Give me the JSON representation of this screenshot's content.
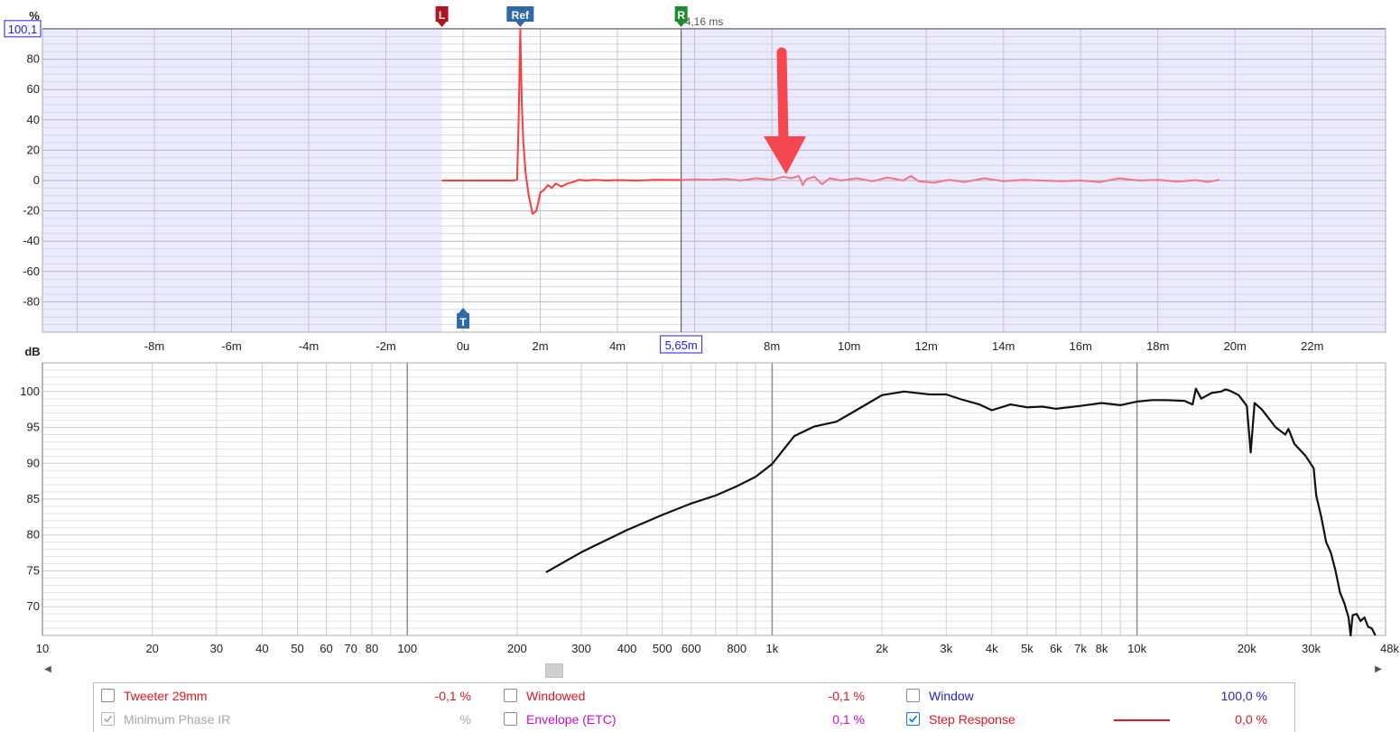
{
  "chart_data": [
    {
      "type": "line",
      "title": "",
      "ylabel": "%",
      "xlabel": "",
      "x_unit": "ms",
      "xlim": [
        -10.9,
        23.9
      ],
      "ylim": [
        -100,
        100
      ],
      "yticks": [
        80,
        60,
        40,
        20,
        0,
        -20,
        -40,
        -60,
        -80
      ],
      "xtick_labels": [
        {
          "x": -8,
          "label": "-8m"
        },
        {
          "x": -6,
          "label": "-6m"
        },
        {
          "x": -4,
          "label": "-4m"
        },
        {
          "x": -2,
          "label": "-2m"
        },
        {
          "x": 0,
          "label": "0u"
        },
        {
          "x": 2,
          "label": "2m"
        },
        {
          "x": 4,
          "label": "4m"
        },
        {
          "x": 8,
          "label": "8m"
        },
        {
          "x": 10,
          "label": "10m"
        },
        {
          "x": 12,
          "label": "12m"
        },
        {
          "x": 14,
          "label": "14m"
        },
        {
          "x": 16,
          "label": "16m"
        },
        {
          "x": 18,
          "label": "18m"
        },
        {
          "x": 20,
          "label": "20m"
        },
        {
          "x": 22,
          "label": "22m"
        }
      ],
      "window": {
        "left_ms": -0.55,
        "right_ms": 5.65
      },
      "markers": [
        {
          "label": "L",
          "x": -0.55,
          "color": "#b3121f",
          "position": "top"
        },
        {
          "label": "Ref",
          "x": 1.48,
          "color": "#2e6aa8",
          "position": "top"
        },
        {
          "label": "R",
          "x": 5.65,
          "color": "#1e8a2c",
          "position": "top"
        },
        {
          "label": "T",
          "x": 0,
          "color": "#2e6aa8",
          "position": "bottom"
        }
      ],
      "cursor": {
        "x_label": "5,65m",
        "y_label": "100,1",
        "y": 100.1,
        "x": 5.65,
        "readout": "4,16 ms"
      },
      "series": [
        {
          "color": "#ff3b3b",
          "x": [
            -0.55,
            1.3,
            1.4,
            1.44,
            1.48,
            1.52,
            1.56,
            1.62,
            1.7,
            1.8,
            1.9,
            2.0,
            2.1,
            2.2,
            2.3,
            2.4,
            2.55,
            2.7,
            2.85,
            3.0,
            3.2,
            3.4,
            3.7,
            4.0,
            4.5,
            5.0,
            5.65
          ],
          "y": [
            0,
            0,
            0.5,
            40,
            100,
            50,
            25,
            5,
            -10,
            -22,
            -20,
            -8,
            -6,
            -3,
            -5,
            -2,
            -4,
            -2,
            -1,
            0.5,
            0,
            0.5,
            0,
            0.3,
            0,
            0.5,
            0.3
          ]
        },
        {
          "color": "#f07585",
          "x": [
            5.65,
            6.0,
            6.4,
            6.8,
            7.2,
            7.6,
            8.0,
            8.3,
            8.5,
            8.7,
            8.8,
            8.9,
            9.1,
            9.3,
            9.5,
            9.8,
            10.2,
            10.6,
            11.0,
            11.4,
            11.6,
            11.8,
            12.2,
            12.6,
            13.0,
            13.5,
            14.0,
            14.5,
            15.0,
            15.5,
            16.0,
            16.5,
            17.0,
            17.5,
            18.0,
            18.5,
            19.0,
            19.3,
            19.6
          ],
          "y": [
            0.3,
            0.8,
            0.5,
            1.0,
            0,
            1.5,
            0.5,
            2.5,
            1.5,
            3.0,
            -3.0,
            1.0,
            2.5,
            -2.5,
            1.5,
            0,
            1.5,
            -0.5,
            2.0,
            0,
            3.0,
            -0.5,
            -1.5,
            0.5,
            -1.0,
            1.5,
            -0.5,
            0.5,
            0,
            -0.5,
            0,
            -1.0,
            1.5,
            0,
            0.5,
            -0.8,
            0.3,
            -1.0,
            0.5
          ]
        }
      ]
    },
    {
      "type": "line",
      "title": "",
      "ylabel": "dB",
      "xlabel": "",
      "x_scale": "log",
      "xlim": [
        10,
        48000
      ],
      "ylim": [
        66,
        104
      ],
      "yticks": [
        100,
        95,
        90,
        85,
        80,
        75,
        70
      ],
      "xtick_labels": [
        {
          "x": 10,
          "label": "10"
        },
        {
          "x": 20,
          "label": "20"
        },
        {
          "x": 30,
          "label": "30"
        },
        {
          "x": 40,
          "label": "40"
        },
        {
          "x": 50,
          "label": "50"
        },
        {
          "x": 60,
          "label": "60"
        },
        {
          "x": 70,
          "label": "70"
        },
        {
          "x": 80,
          "label": "80"
        },
        {
          "x": 100,
          "label": "100"
        },
        {
          "x": 200,
          "label": "200"
        },
        {
          "x": 300,
          "label": "300"
        },
        {
          "x": 400,
          "label": "400"
        },
        {
          "x": 500,
          "label": "500"
        },
        {
          "x": 600,
          "label": "600"
        },
        {
          "x": 800,
          "label": "800"
        },
        {
          "x": 1000,
          "label": "1k"
        },
        {
          "x": 2000,
          "label": "2k"
        },
        {
          "x": 3000,
          "label": "3k"
        },
        {
          "x": 4000,
          "label": "4k"
        },
        {
          "x": 5000,
          "label": "5k"
        },
        {
          "x": 6000,
          "label": "6k"
        },
        {
          "x": 7000,
          "label": "7k"
        },
        {
          "x": 8000,
          "label": "8k"
        },
        {
          "x": 10000,
          "label": "10k"
        },
        {
          "x": 20000,
          "label": "20k"
        },
        {
          "x": 30000,
          "label": "30k"
        },
        {
          "x": 48000,
          "label": "48kHz"
        }
      ],
      "series": [
        {
          "color": "#111111",
          "x": [
            240,
            300,
            400,
            500,
            600,
            700,
            800,
            900,
            1000,
            1150,
            1300,
            1500,
            1700,
            2000,
            2300,
            2700,
            3000,
            3300,
            3700,
            4000,
            4500,
            5000,
            5500,
            6000,
            7000,
            8000,
            9000,
            10000,
            11000,
            12000,
            13500,
            14200,
            14500,
            15000,
            16000,
            17000,
            17500,
            18000,
            19000,
            20000,
            20500,
            21000,
            22000,
            24000,
            25500,
            26000,
            27000,
            29000,
            30500,
            31000,
            32000,
            33000,
            34000,
            35000,
            36000,
            37000,
            38000,
            38500,
            39000,
            40000,
            41000,
            42000,
            43000,
            44000,
            45000
          ],
          "y": [
            74.8,
            77.6,
            80.7,
            82.8,
            84.4,
            85.5,
            86.8,
            88.1,
            89.9,
            93.8,
            95.1,
            95.8,
            97.4,
            99.5,
            100.0,
            99.6,
            99.6,
            98.9,
            98.2,
            97.4,
            98.2,
            97.8,
            97.9,
            97.6,
            98.0,
            98.4,
            98.1,
            98.6,
            98.8,
            98.8,
            98.7,
            98.2,
            100.4,
            99.0,
            99.8,
            100.0,
            100.3,
            100.1,
            99.5,
            98.0,
            91.5,
            98.4,
            97.5,
            95.0,
            94.0,
            94.8,
            92.7,
            91.0,
            89.3,
            85.5,
            82.5,
            79.0,
            77.5,
            75.0,
            72.0,
            70.5,
            68.5,
            66.0,
            68.8,
            69.0,
            68.0,
            68.5,
            67.2,
            67.0,
            66.0
          ]
        }
      ]
    }
  ],
  "legend": {
    "rows": [
      [
        {
          "label": "Tweeter 29mm",
          "value": "-0,1 %",
          "color": "#e8141f",
          "checked": false
        },
        {
          "label": "Windowed",
          "value": "-0,1 %",
          "color": "#e8141f",
          "checked": false
        },
        {
          "label": "Window",
          "value": "100,0 %",
          "color": "#2222dd",
          "checked": false
        }
      ],
      [
        {
          "label": "Minimum Phase IR",
          "value": "%",
          "color": "#a8a8a8",
          "checked": true
        },
        {
          "label": "Envelope (ETC)",
          "value": "0,1 %",
          "color": "#d10bd1",
          "checked": false
        },
        {
          "label": "Step Response",
          "value": "0,0 %",
          "color": "#e8141f",
          "checked": true
        }
      ]
    ]
  },
  "scrollbar": {
    "left_icon": "left-arrow-icon",
    "right_icon": "right-arrow-icon"
  },
  "annotation": {
    "icon": "red-down-arrow-icon",
    "color": "#f4474f"
  }
}
